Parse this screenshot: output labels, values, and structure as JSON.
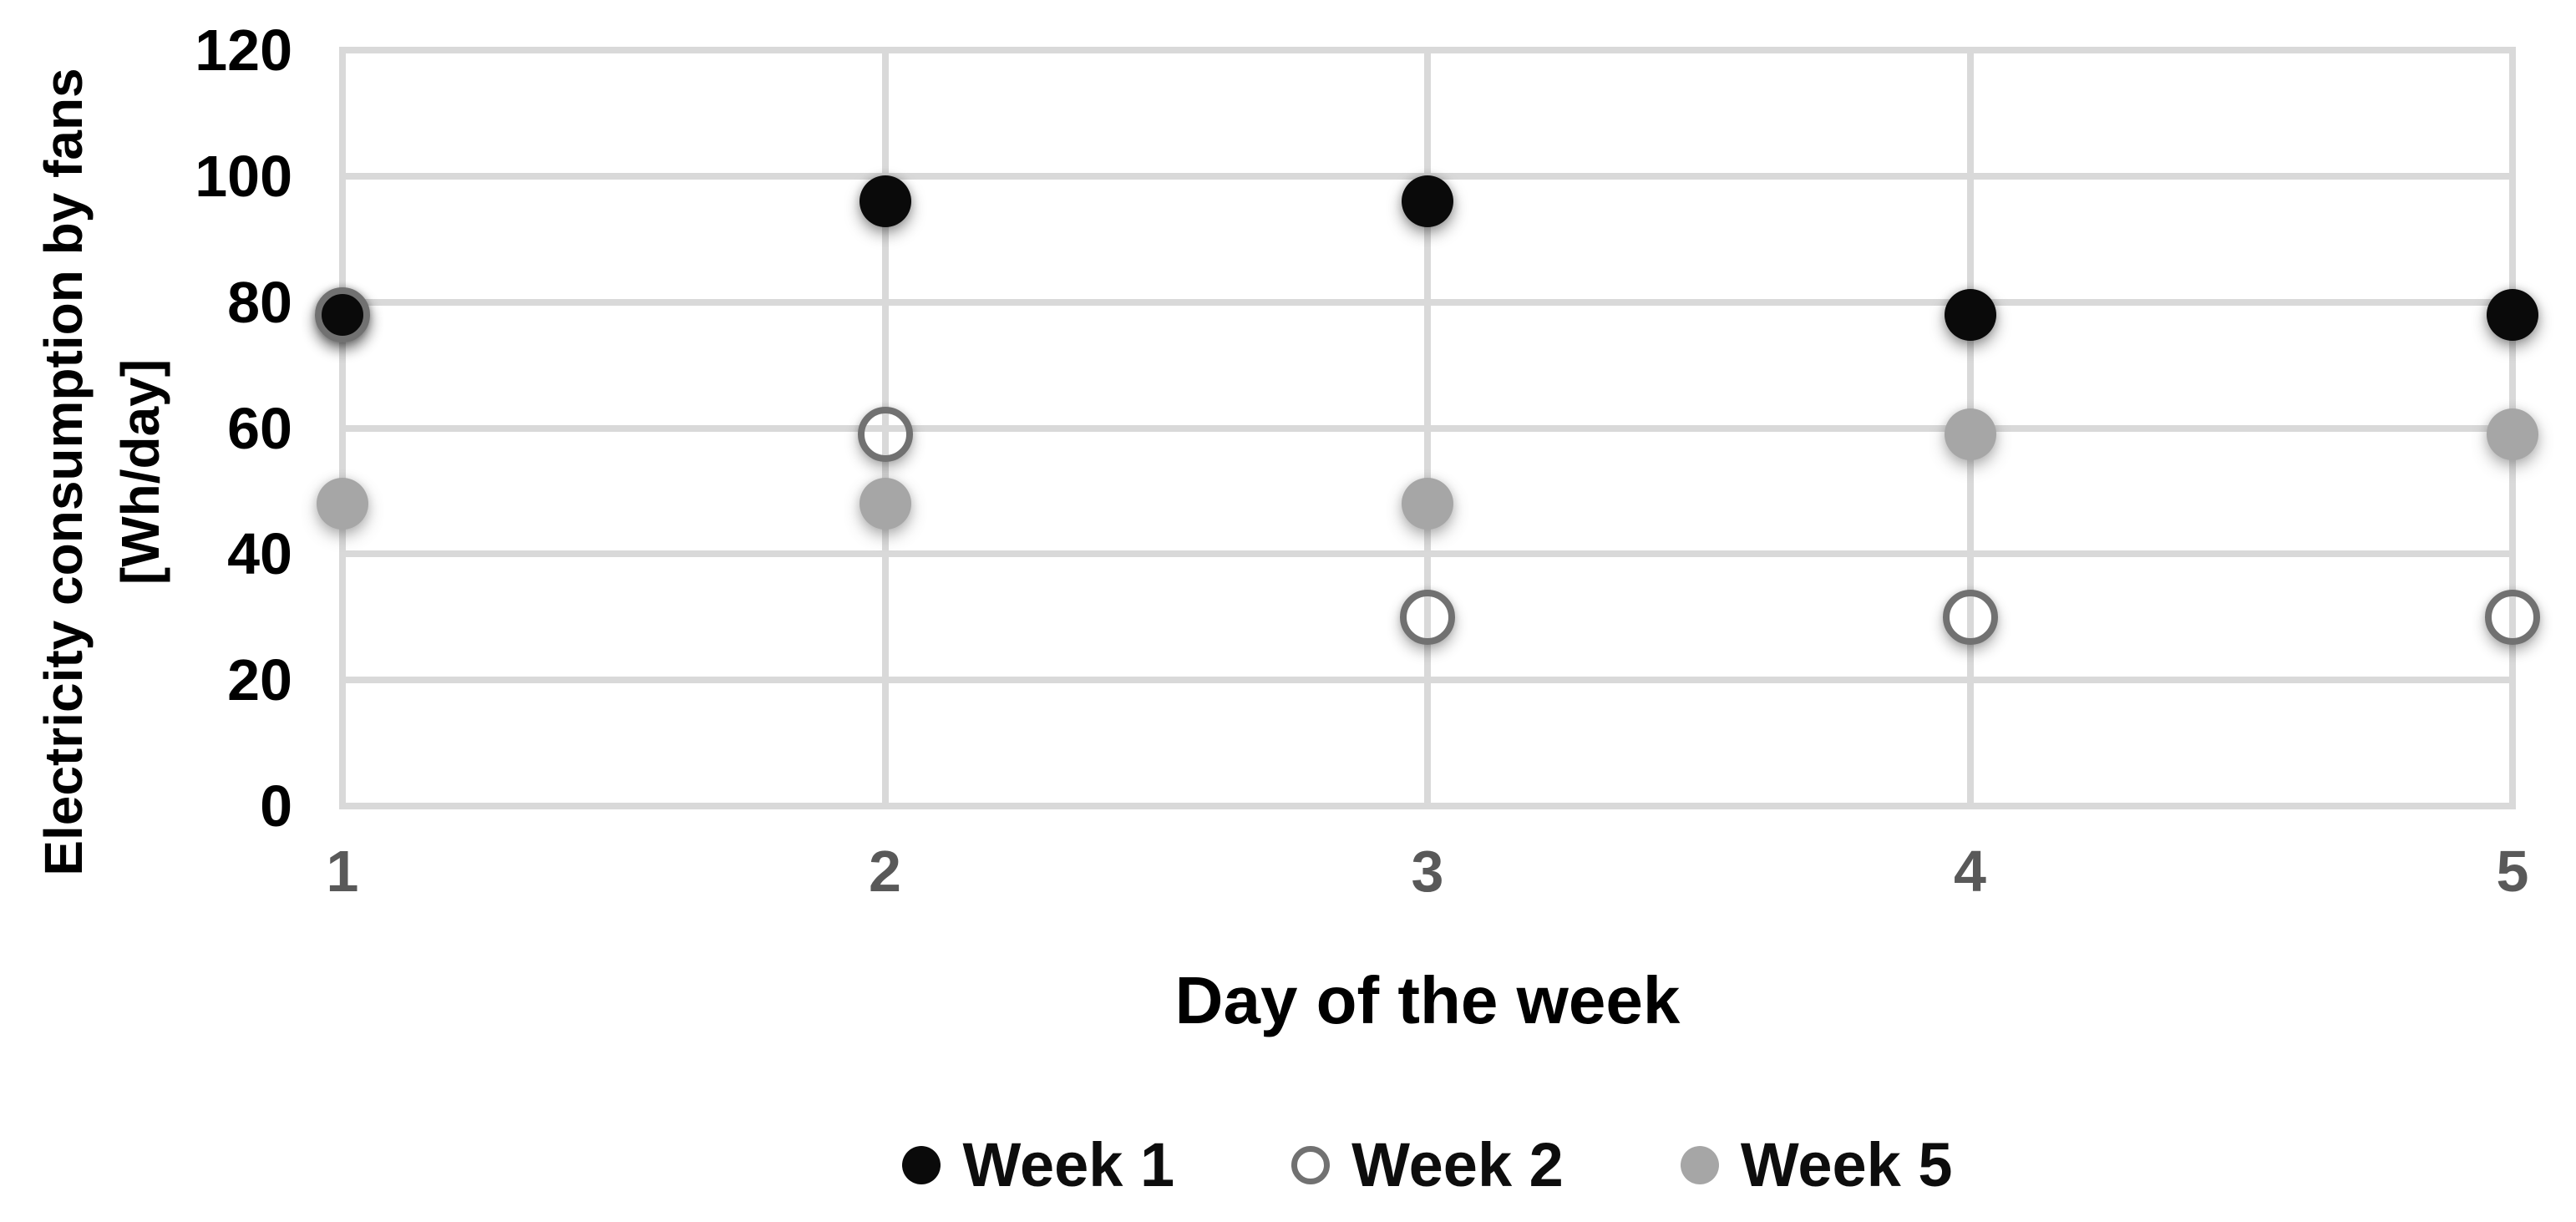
{
  "chart_data": {
    "type": "scatter",
    "x": [
      1,
      2,
      3,
      4,
      5
    ],
    "xticks": [
      "1",
      "2",
      "3",
      "4",
      "5"
    ],
    "yticks": [
      "0",
      "20",
      "40",
      "60",
      "80",
      "100",
      "120"
    ],
    "ylim": [
      0,
      120
    ],
    "xlim": [
      1,
      5
    ],
    "xlabel": "Day of the week",
    "ylabel": "Electricity consumption by fans [Wh/day]",
    "ylabel_lines": [
      "Electricity consumption by fans",
      "[Wh/day]"
    ],
    "grid": true,
    "legend_position": "bottom",
    "series": [
      {
        "name": "Week 1",
        "marker": "filled",
        "color": "#0a0a0a",
        "values": [
          78,
          96,
          96,
          78,
          78
        ]
      },
      {
        "name": "Week 2",
        "marker": "open",
        "color": "#717171",
        "values": [
          78,
          59,
          30,
          30,
          30
        ]
      },
      {
        "name": "Week 5",
        "marker": "filled",
        "color": "#a6a6a6",
        "values": [
          48,
          48,
          48,
          59,
          59
        ]
      }
    ],
    "colors": {
      "background": "#ffffff",
      "gridline": "#d9d9d9",
      "y_tick_label": "#000000",
      "x_tick_label": "#595959",
      "axis_title": "#000000",
      "legend_text": "#0d0d0d"
    }
  }
}
